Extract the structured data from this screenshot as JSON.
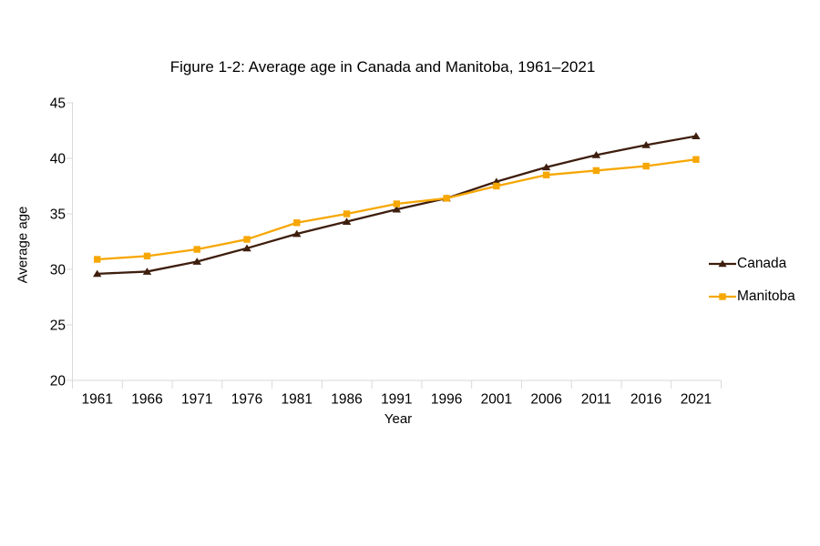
{
  "chart_data": {
    "type": "line",
    "title": "Figure 1-2: Average age in Canada and Manitoba, 1961–2021",
    "xlabel": "Year",
    "ylabel": "Average age",
    "categories": [
      "1961",
      "1966",
      "1971",
      "1976",
      "1981",
      "1986",
      "1991",
      "1996",
      "2001",
      "2006",
      "2011",
      "2016",
      "2021"
    ],
    "series": [
      {
        "name": "Canada",
        "marker": "triangle",
        "color": "#3e1e0e",
        "values": [
          29.6,
          29.8,
          30.7,
          31.9,
          33.2,
          34.3,
          35.4,
          36.4,
          37.9,
          39.2,
          40.3,
          41.2,
          42.0
        ]
      },
      {
        "name": "Manitoba",
        "marker": "square",
        "color": "#f6a704",
        "values": [
          30.9,
          31.2,
          31.8,
          32.7,
          34.2,
          35.0,
          35.9,
          36.4,
          37.5,
          38.5,
          38.9,
          39.3,
          39.9
        ]
      }
    ],
    "ylim": [
      20,
      45
    ],
    "ytick_step": 5,
    "yticks": [
      "20",
      "25",
      "30",
      "35",
      "40",
      "45"
    ],
    "grid": false,
    "legend_position": "right",
    "axis_color": "#d9d9d9",
    "text_color": "#000000"
  }
}
